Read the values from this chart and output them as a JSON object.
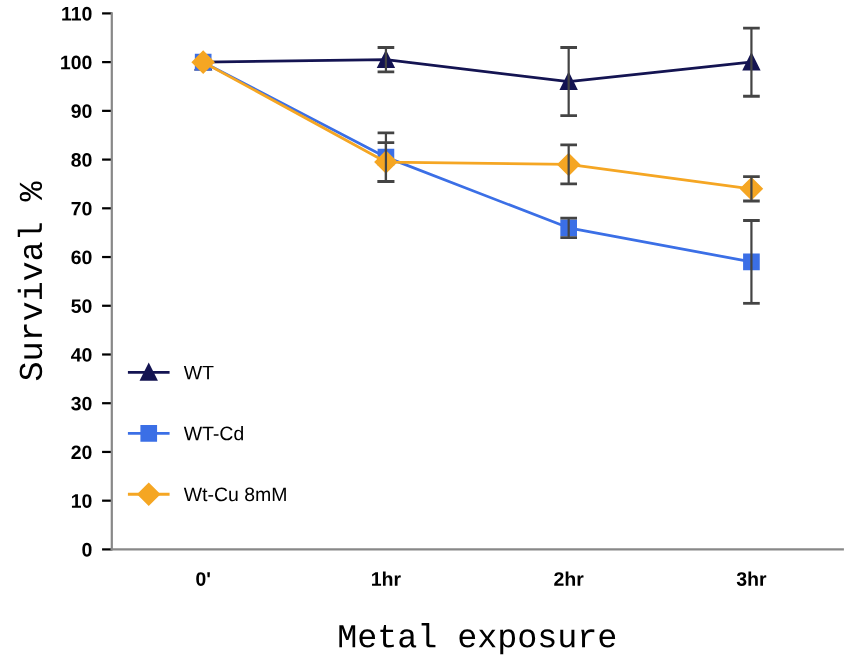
{
  "chart_data": {
    "type": "line",
    "xlabel": "Metal exposure",
    "ylabel": "Survival %",
    "categories": [
      "0'",
      "1hr",
      "2hr",
      "3hr"
    ],
    "series": [
      {
        "name": "WT",
        "color": "#141452",
        "marker": "triangle",
        "values": [
          100,
          100.5,
          96,
          100
        ],
        "errors": [
          null,
          2.5,
          7,
          7
        ]
      },
      {
        "name": "WT-Cd",
        "color": "#3b6fe6",
        "marker": "square",
        "values": [
          100,
          80.5,
          66,
          59
        ],
        "errors": [
          null,
          5,
          2,
          8.5
        ]
      },
      {
        "name": "Wt-Cu 8mM",
        "color": "#f5a623",
        "marker": "diamond",
        "values": [
          100,
          79.5,
          79,
          74
        ],
        "errors": [
          null,
          4,
          4,
          2.5
        ]
      }
    ],
    "ylim": [
      0,
      110
    ],
    "yticks": [
      0,
      10,
      20,
      30,
      40,
      50,
      60,
      70,
      80,
      90,
      100,
      110
    ],
    "grid": false,
    "legend": "bottom left"
  }
}
